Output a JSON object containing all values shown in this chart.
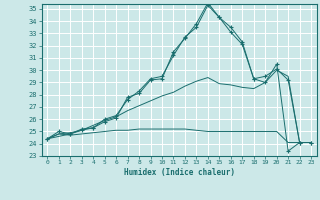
{
  "xlabel": "Humidex (Indice chaleur)",
  "bg_color": "#cce8e8",
  "grid_color": "#ffffff",
  "line_color": "#1a6e6e",
  "xlim": [
    -0.5,
    23.5
  ],
  "ylim": [
    23,
    35.4
  ],
  "xticks": [
    0,
    1,
    2,
    3,
    4,
    5,
    6,
    7,
    8,
    9,
    10,
    11,
    12,
    13,
    14,
    15,
    16,
    17,
    18,
    19,
    20,
    21,
    22,
    23
  ],
  "yticks": [
    23,
    24,
    25,
    26,
    27,
    28,
    29,
    30,
    31,
    32,
    33,
    34,
    35
  ],
  "series": [
    {
      "x": [
        0,
        1,
        2,
        3,
        4,
        5,
        6,
        7,
        8,
        9,
        10,
        11,
        12,
        13,
        14,
        15,
        16,
        17,
        18,
        19,
        20,
        21,
        22,
        23
      ],
      "y": [
        24.4,
        25.0,
        24.8,
        25.2,
        25.3,
        26.0,
        26.3,
        27.6,
        28.3,
        29.3,
        29.5,
        31.2,
        32.7,
        33.5,
        35.3,
        34.3,
        33.5,
        32.3,
        29.3,
        29.5,
        30.1,
        29.2,
        24.1,
        24.1
      ],
      "marker": true
    },
    {
      "x": [
        0,
        2,
        3,
        4,
        5,
        6,
        7,
        8,
        9,
        10,
        11,
        12,
        13,
        14,
        15,
        16,
        17,
        18,
        19,
        20,
        21,
        22,
        23
      ],
      "y": [
        24.4,
        24.8,
        25.1,
        25.3,
        25.8,
        26.1,
        27.8,
        28.1,
        29.2,
        29.3,
        31.5,
        32.6,
        33.8,
        35.5,
        34.3,
        33.1,
        32.1,
        29.3,
        29.0,
        30.5,
        23.4,
        24.1,
        24.1
      ],
      "marker": true
    },
    {
      "x": [
        0,
        1,
        2,
        3,
        4,
        5,
        6,
        7,
        8,
        9,
        10,
        11,
        12,
        13,
        14,
        15,
        16,
        17,
        18,
        19,
        20,
        21,
        22,
        23
      ],
      "y": [
        24.4,
        24.8,
        24.9,
        25.1,
        25.5,
        25.9,
        26.2,
        26.7,
        27.1,
        27.5,
        27.9,
        28.2,
        28.7,
        29.1,
        29.4,
        28.9,
        28.8,
        28.6,
        28.5,
        29.0,
        30.0,
        29.5,
        24.1,
        24.1
      ],
      "marker": false
    },
    {
      "x": [
        0,
        1,
        2,
        3,
        4,
        5,
        6,
        7,
        8,
        9,
        10,
        11,
        12,
        13,
        14,
        15,
        16,
        17,
        18,
        19,
        20,
        21,
        22,
        23
      ],
      "y": [
        24.4,
        24.8,
        24.7,
        24.8,
        24.9,
        25.0,
        25.1,
        25.1,
        25.2,
        25.2,
        25.2,
        25.2,
        25.2,
        25.1,
        25.0,
        25.0,
        25.0,
        25.0,
        25.0,
        25.0,
        25.0,
        24.1,
        24.1,
        24.1
      ],
      "marker": false
    }
  ]
}
